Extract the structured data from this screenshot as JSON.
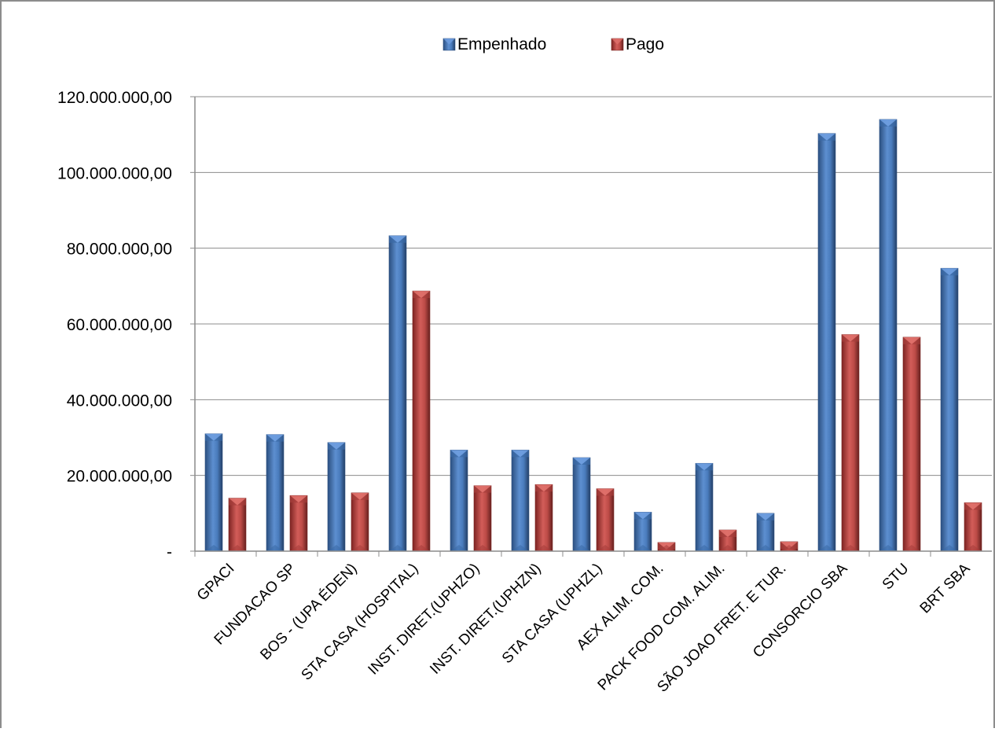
{
  "chart_data": {
    "type": "bar",
    "title": "",
    "xlabel": "",
    "ylabel": "",
    "ylim": [
      0,
      120000000
    ],
    "y_ticks": [
      0,
      20000000,
      40000000,
      60000000,
      80000000,
      100000000,
      120000000
    ],
    "y_tick_labels": [
      "-",
      "20.000.000,00",
      "40.000.000,00",
      "60.000.000,00",
      "80.000.000,00",
      "100.000.000,00",
      "120.000.000,00"
    ],
    "grid": true,
    "legend_position": "top-center",
    "categories": [
      "GPACI",
      "FUNDACAO SP",
      "BOS - (UPA ÉDEN)",
      "STA CASA (HOSPITAL)",
      "INST. DIRET.(UPHZO)",
      "INST. DIRET.(UPHZN)",
      "STA CASA (UPHZL)",
      "AEX ALIM. COM.",
      "PACK FOOD COM. ALIM.",
      "SÃO JOAO FRET. E TUR.",
      "CONSORCIO SBA",
      "STU",
      "BRT SBA"
    ],
    "series": [
      {
        "name": "Empenhado",
        "color": "#4f81bd",
        "values": [
          31000000,
          30800000,
          28700000,
          83300000,
          26700000,
          26700000,
          24700000,
          10300000,
          23200000,
          10000000,
          110300000,
          114000000,
          74700000
        ]
      },
      {
        "name": "Pago",
        "color": "#c0504d",
        "values": [
          14000000,
          14700000,
          15400000,
          68700000,
          17300000,
          17600000,
          16500000,
          2300000,
          5600000,
          2500000,
          57200000,
          56500000,
          12800000
        ]
      }
    ]
  }
}
